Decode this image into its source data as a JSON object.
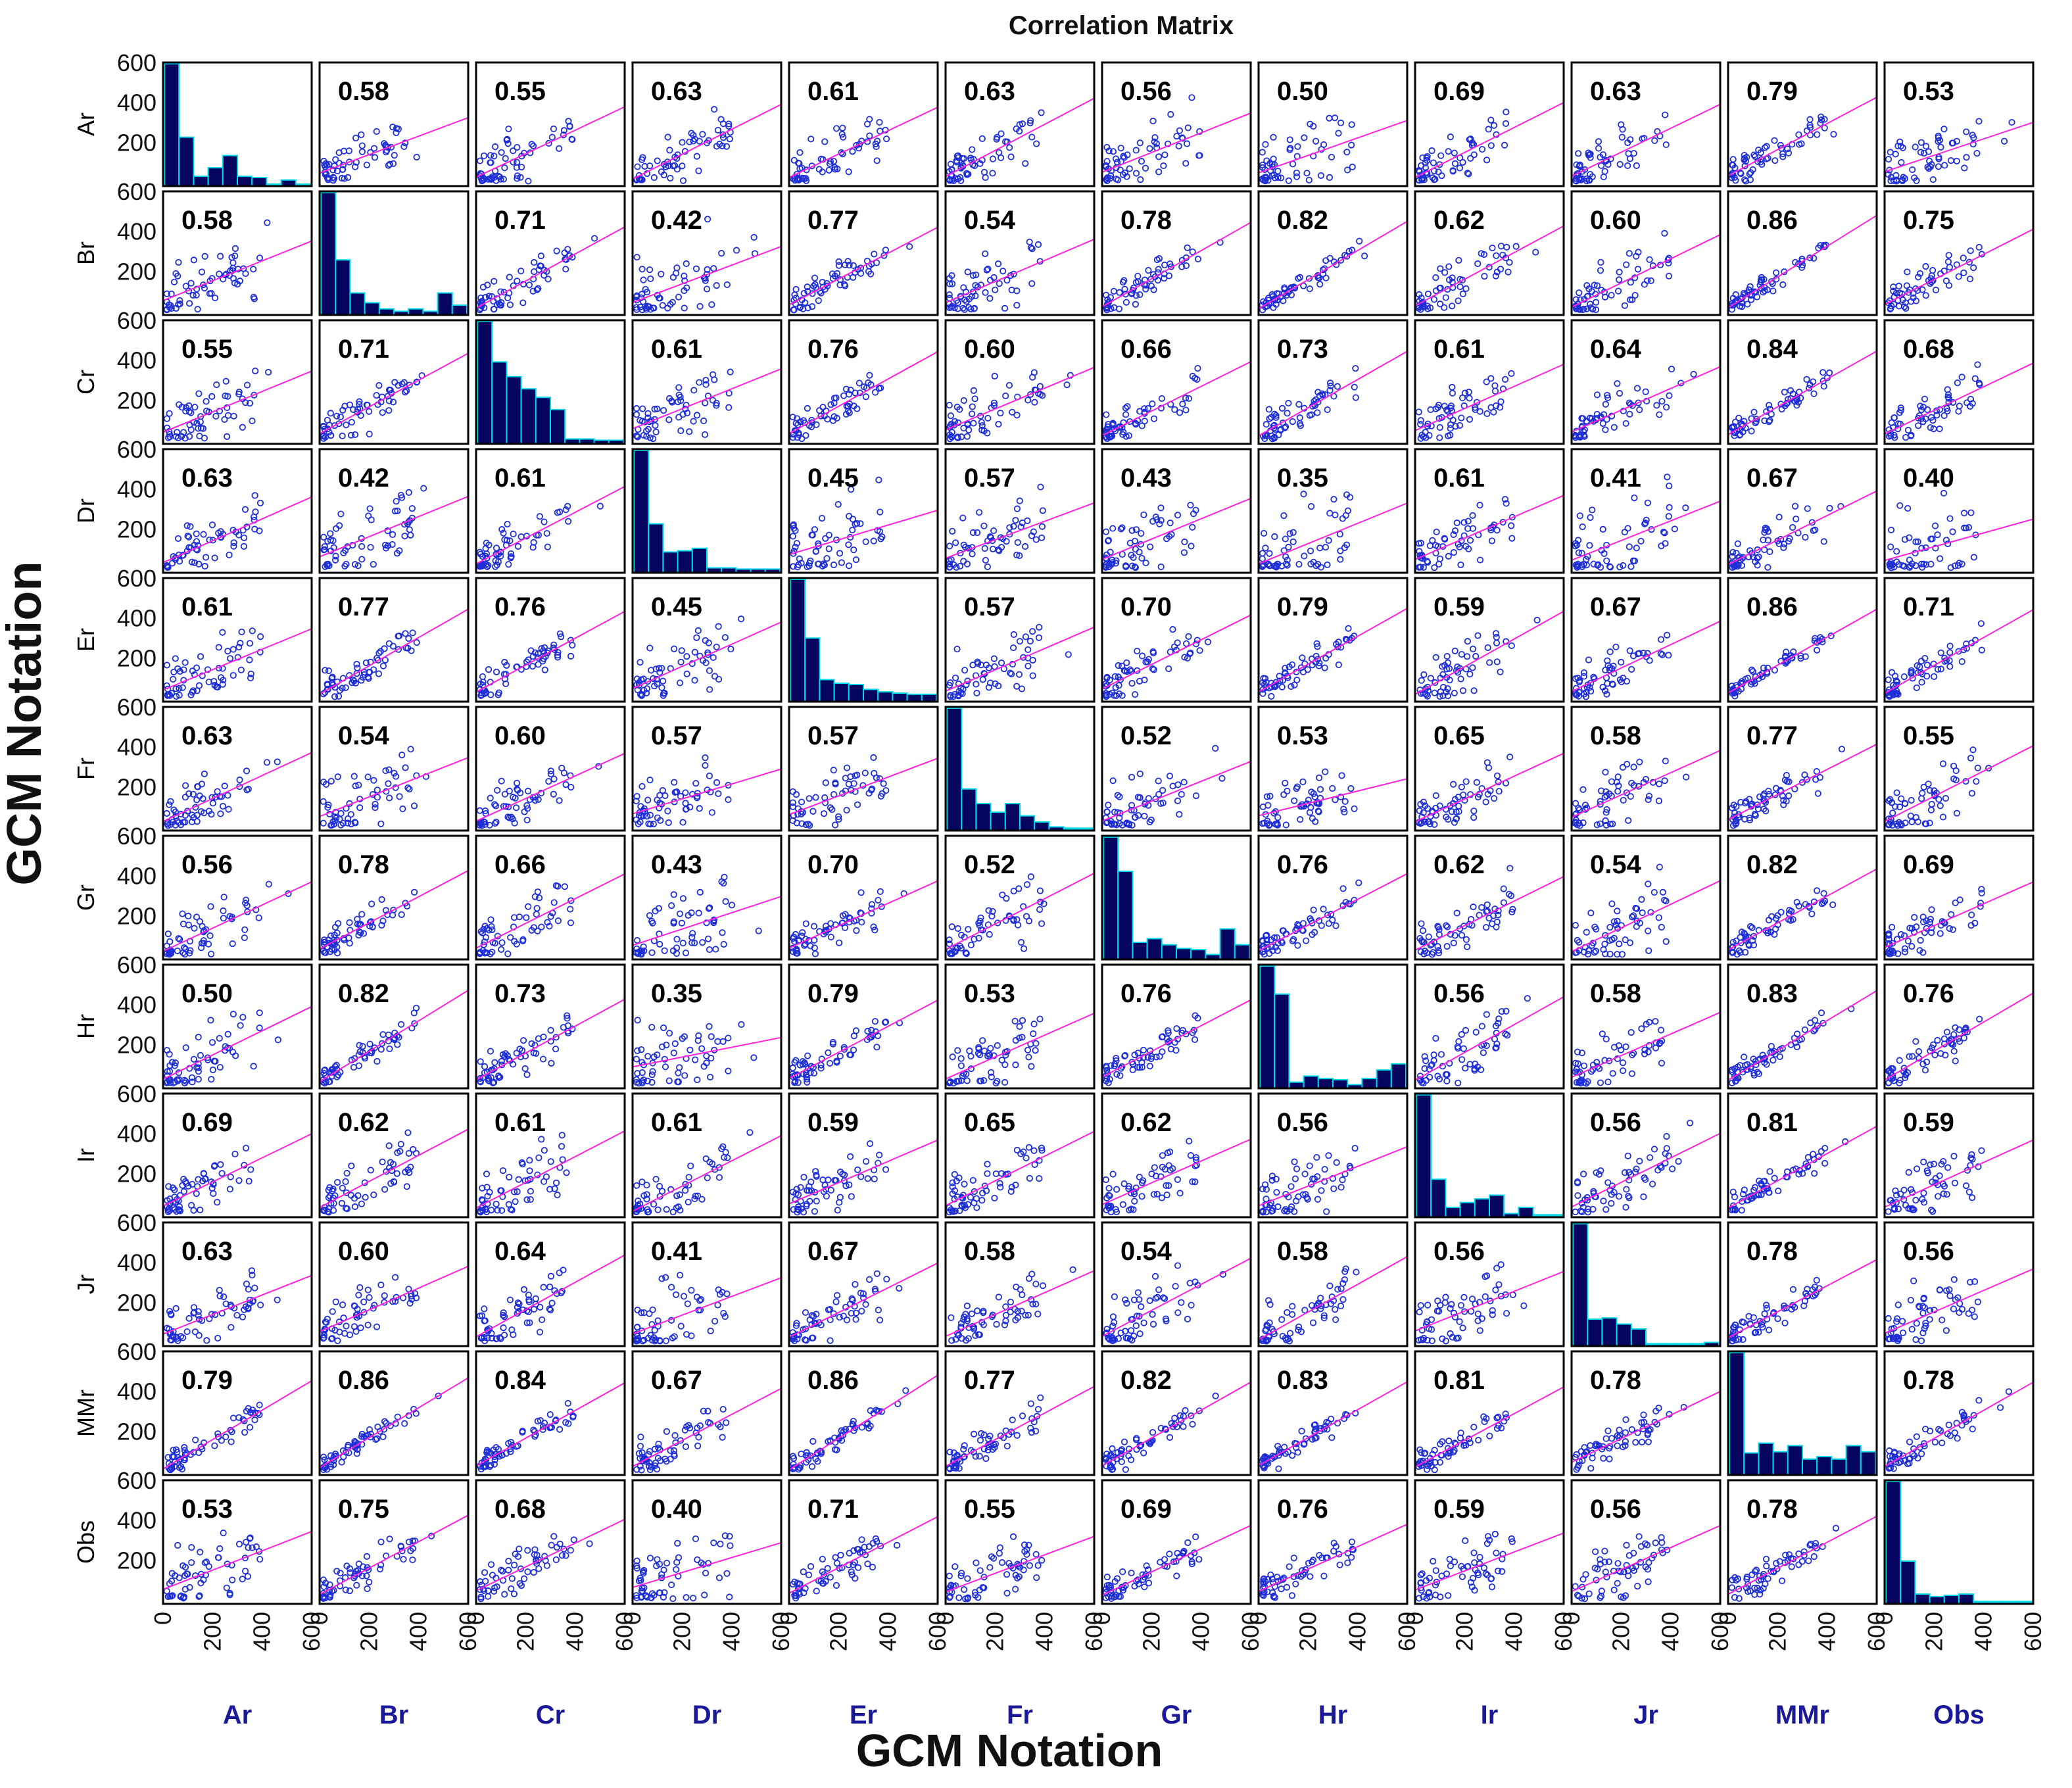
{
  "chart_data": {
    "type": "scatter",
    "title": "Correlation Matrix",
    "xlabel": "GCM Notation",
    "ylabel": "GCM Notation",
    "variables": [
      "Ar",
      "Br",
      "Cr",
      "Dr",
      "Er",
      "Fr",
      "Gr",
      "Hr",
      "Ir",
      "Jr",
      "MMr",
      "Obs"
    ],
    "xlim": [
      0,
      600
    ],
    "ylim": [
      0,
      600
    ],
    "x_ticks": [
      0,
      200,
      400,
      600
    ],
    "y_ticks": [
      0,
      200,
      400,
      600
    ],
    "y_tick_labels": [
      "",
      "200",
      "400",
      "600"
    ],
    "diagonal": "histogram",
    "off_diagonal": "scatter-with-least-squares-line",
    "correlation_matrix": [
      [
        null,
        0.58,
        0.55,
        0.63,
        0.61,
        0.63,
        0.56,
        0.5,
        0.69,
        0.63,
        0.79,
        0.53
      ],
      [
        0.58,
        null,
        0.71,
        0.42,
        0.77,
        0.54,
        0.78,
        0.82,
        0.62,
        0.6,
        0.86,
        0.75
      ],
      [
        0.55,
        0.71,
        null,
        0.61,
        0.76,
        0.6,
        0.66,
        0.73,
        0.61,
        0.64,
        0.84,
        0.68
      ],
      [
        0.63,
        0.42,
        0.61,
        null,
        0.45,
        0.57,
        0.43,
        0.35,
        0.61,
        0.41,
        0.67,
        0.4
      ],
      [
        0.61,
        0.77,
        0.76,
        0.45,
        null,
        0.57,
        0.7,
        0.79,
        0.59,
        0.67,
        0.86,
        0.71
      ],
      [
        0.63,
        0.54,
        0.6,
        0.57,
        0.57,
        null,
        0.52,
        0.53,
        0.65,
        0.58,
        0.77,
        0.55
      ],
      [
        0.56,
        0.78,
        0.66,
        0.43,
        0.7,
        0.52,
        null,
        0.76,
        0.62,
        0.54,
        0.82,
        0.69
      ],
      [
        0.5,
        0.82,
        0.73,
        0.35,
        0.79,
        0.53,
        0.76,
        null,
        0.56,
        0.58,
        0.83,
        0.76
      ],
      [
        0.69,
        0.62,
        0.61,
        0.61,
        0.59,
        0.65,
        0.62,
        0.56,
        null,
        0.56,
        0.81,
        0.59
      ],
      [
        0.63,
        0.6,
        0.64,
        0.41,
        0.67,
        0.58,
        0.54,
        0.58,
        0.56,
        null,
        0.78,
        0.56
      ],
      [
        0.79,
        0.86,
        0.84,
        0.67,
        0.86,
        0.77,
        0.82,
        0.83,
        0.81,
        0.78,
        null,
        0.78
      ],
      [
        0.53,
        0.75,
        0.68,
        0.4,
        0.71,
        0.55,
        0.69,
        0.76,
        0.59,
        0.56,
        0.78,
        null
      ]
    ],
    "histograms": [
      [
        1.0,
        0.4,
        0.08,
        0.15,
        0.25,
        0.08,
        0.07,
        0.0,
        0.05,
        0.0
      ],
      [
        1.0,
        0.45,
        0.18,
        0.1,
        0.05,
        0.03,
        0.05,
        0.03,
        0.18,
        0.08
      ],
      [
        1.0,
        0.67,
        0.55,
        0.45,
        0.38,
        0.28,
        0.04,
        0.04,
        0.03,
        0.03
      ],
      [
        1.0,
        0.4,
        0.17,
        0.18,
        0.2,
        0.04,
        0.04,
        0.03,
        0.03,
        0.03
      ],
      [
        1.0,
        0.52,
        0.18,
        0.15,
        0.14,
        0.1,
        0.08,
        0.07,
        0.06,
        0.06
      ],
      [
        1.0,
        0.34,
        0.22,
        0.15,
        0.22,
        0.12,
        0.07,
        0.03,
        0.02,
        0.02
      ],
      [
        1.0,
        0.72,
        0.14,
        0.17,
        0.12,
        0.09,
        0.08,
        0.04,
        0.25,
        0.12
      ],
      [
        1.0,
        0.77,
        0.05,
        0.1,
        0.08,
        0.07,
        0.03,
        0.08,
        0.15,
        0.2
      ],
      [
        1.0,
        0.31,
        0.08,
        0.12,
        0.15,
        0.18,
        0.03,
        0.08,
        0.02,
        0.02
      ],
      [
        1.0,
        0.22,
        0.23,
        0.18,
        0.14,
        0.02,
        0.02,
        0.02,
        0.02,
        0.03
      ],
      [
        1.0,
        0.18,
        0.26,
        0.19,
        0.24,
        0.13,
        0.15,
        0.13,
        0.24,
        0.19
      ],
      [
        1.0,
        0.35,
        0.08,
        0.06,
        0.07,
        0.08,
        0.02,
        0.02,
        0.02,
        0.02
      ]
    ],
    "colors": {
      "points": "#1f2fd6",
      "fit_line": "#ff22dd",
      "hist_fill": "#05055f",
      "hist_edge": "#00d8e8",
      "corr_text": "#000000",
      "col_label": "#1a1a99",
      "row_label": "#000000"
    }
  }
}
